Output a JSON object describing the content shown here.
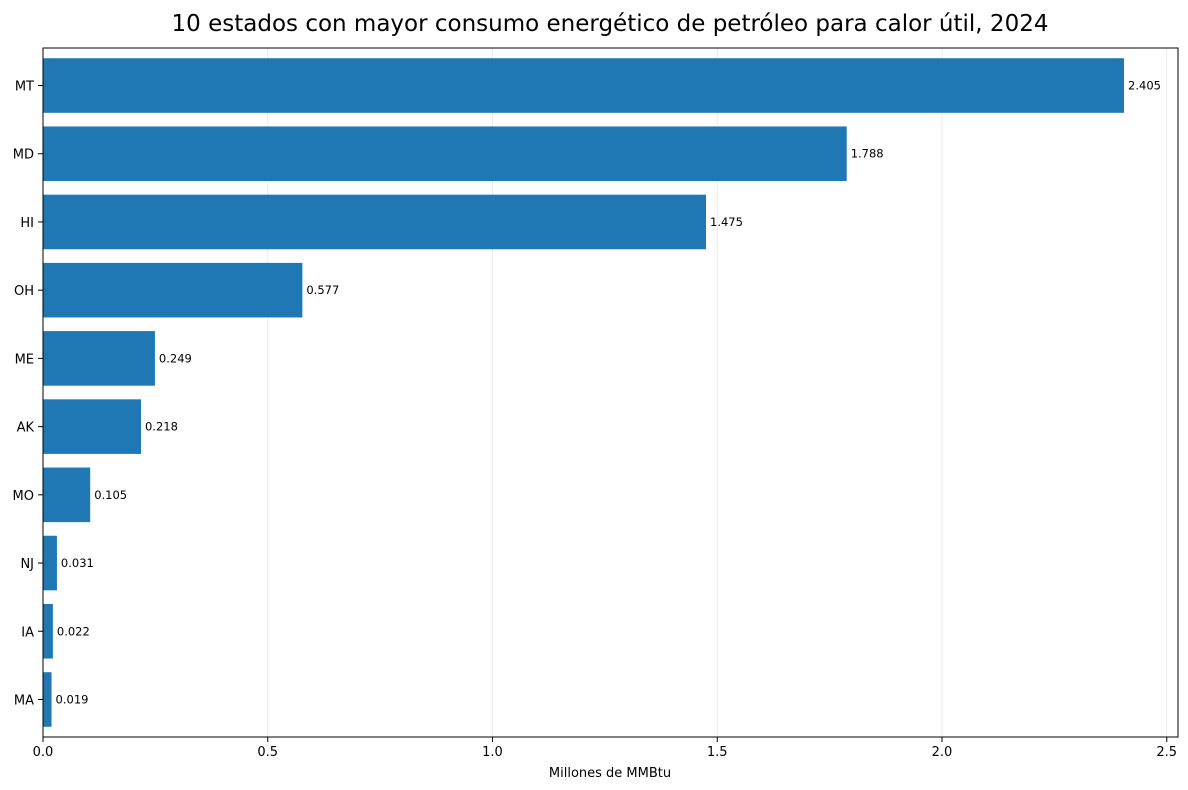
{
  "chart_data": {
    "type": "bar",
    "orientation": "horizontal",
    "title": "10 estados con mayor consumo energético de petróleo para calor útil, 2024",
    "xlabel": "Millones de MMBtu",
    "ylabel": "",
    "categories": [
      "MT",
      "MD",
      "HI",
      "OH",
      "ME",
      "AK",
      "MO",
      "NJ",
      "IA",
      "MA"
    ],
    "values": [
      2.405,
      1.788,
      1.475,
      0.577,
      0.249,
      0.218,
      0.105,
      0.031,
      0.022,
      0.019
    ],
    "data_labels": [
      "2.405",
      "1.788",
      "1.475",
      "0.577",
      "0.249",
      "0.218",
      "0.105",
      "0.031",
      "0.022",
      "0.019"
    ],
    "xticks": [
      0,
      0.5,
      1,
      1.5,
      2,
      2.5
    ],
    "xtick_labels": [
      "0.0",
      "0.5",
      "1.0",
      "1.5",
      "2.0",
      "2.5"
    ],
    "xlim": [
      0,
      2.525
    ],
    "grid": "vertical",
    "bar_color": "#1f77b4",
    "grid_color": "#ebebeb"
  }
}
